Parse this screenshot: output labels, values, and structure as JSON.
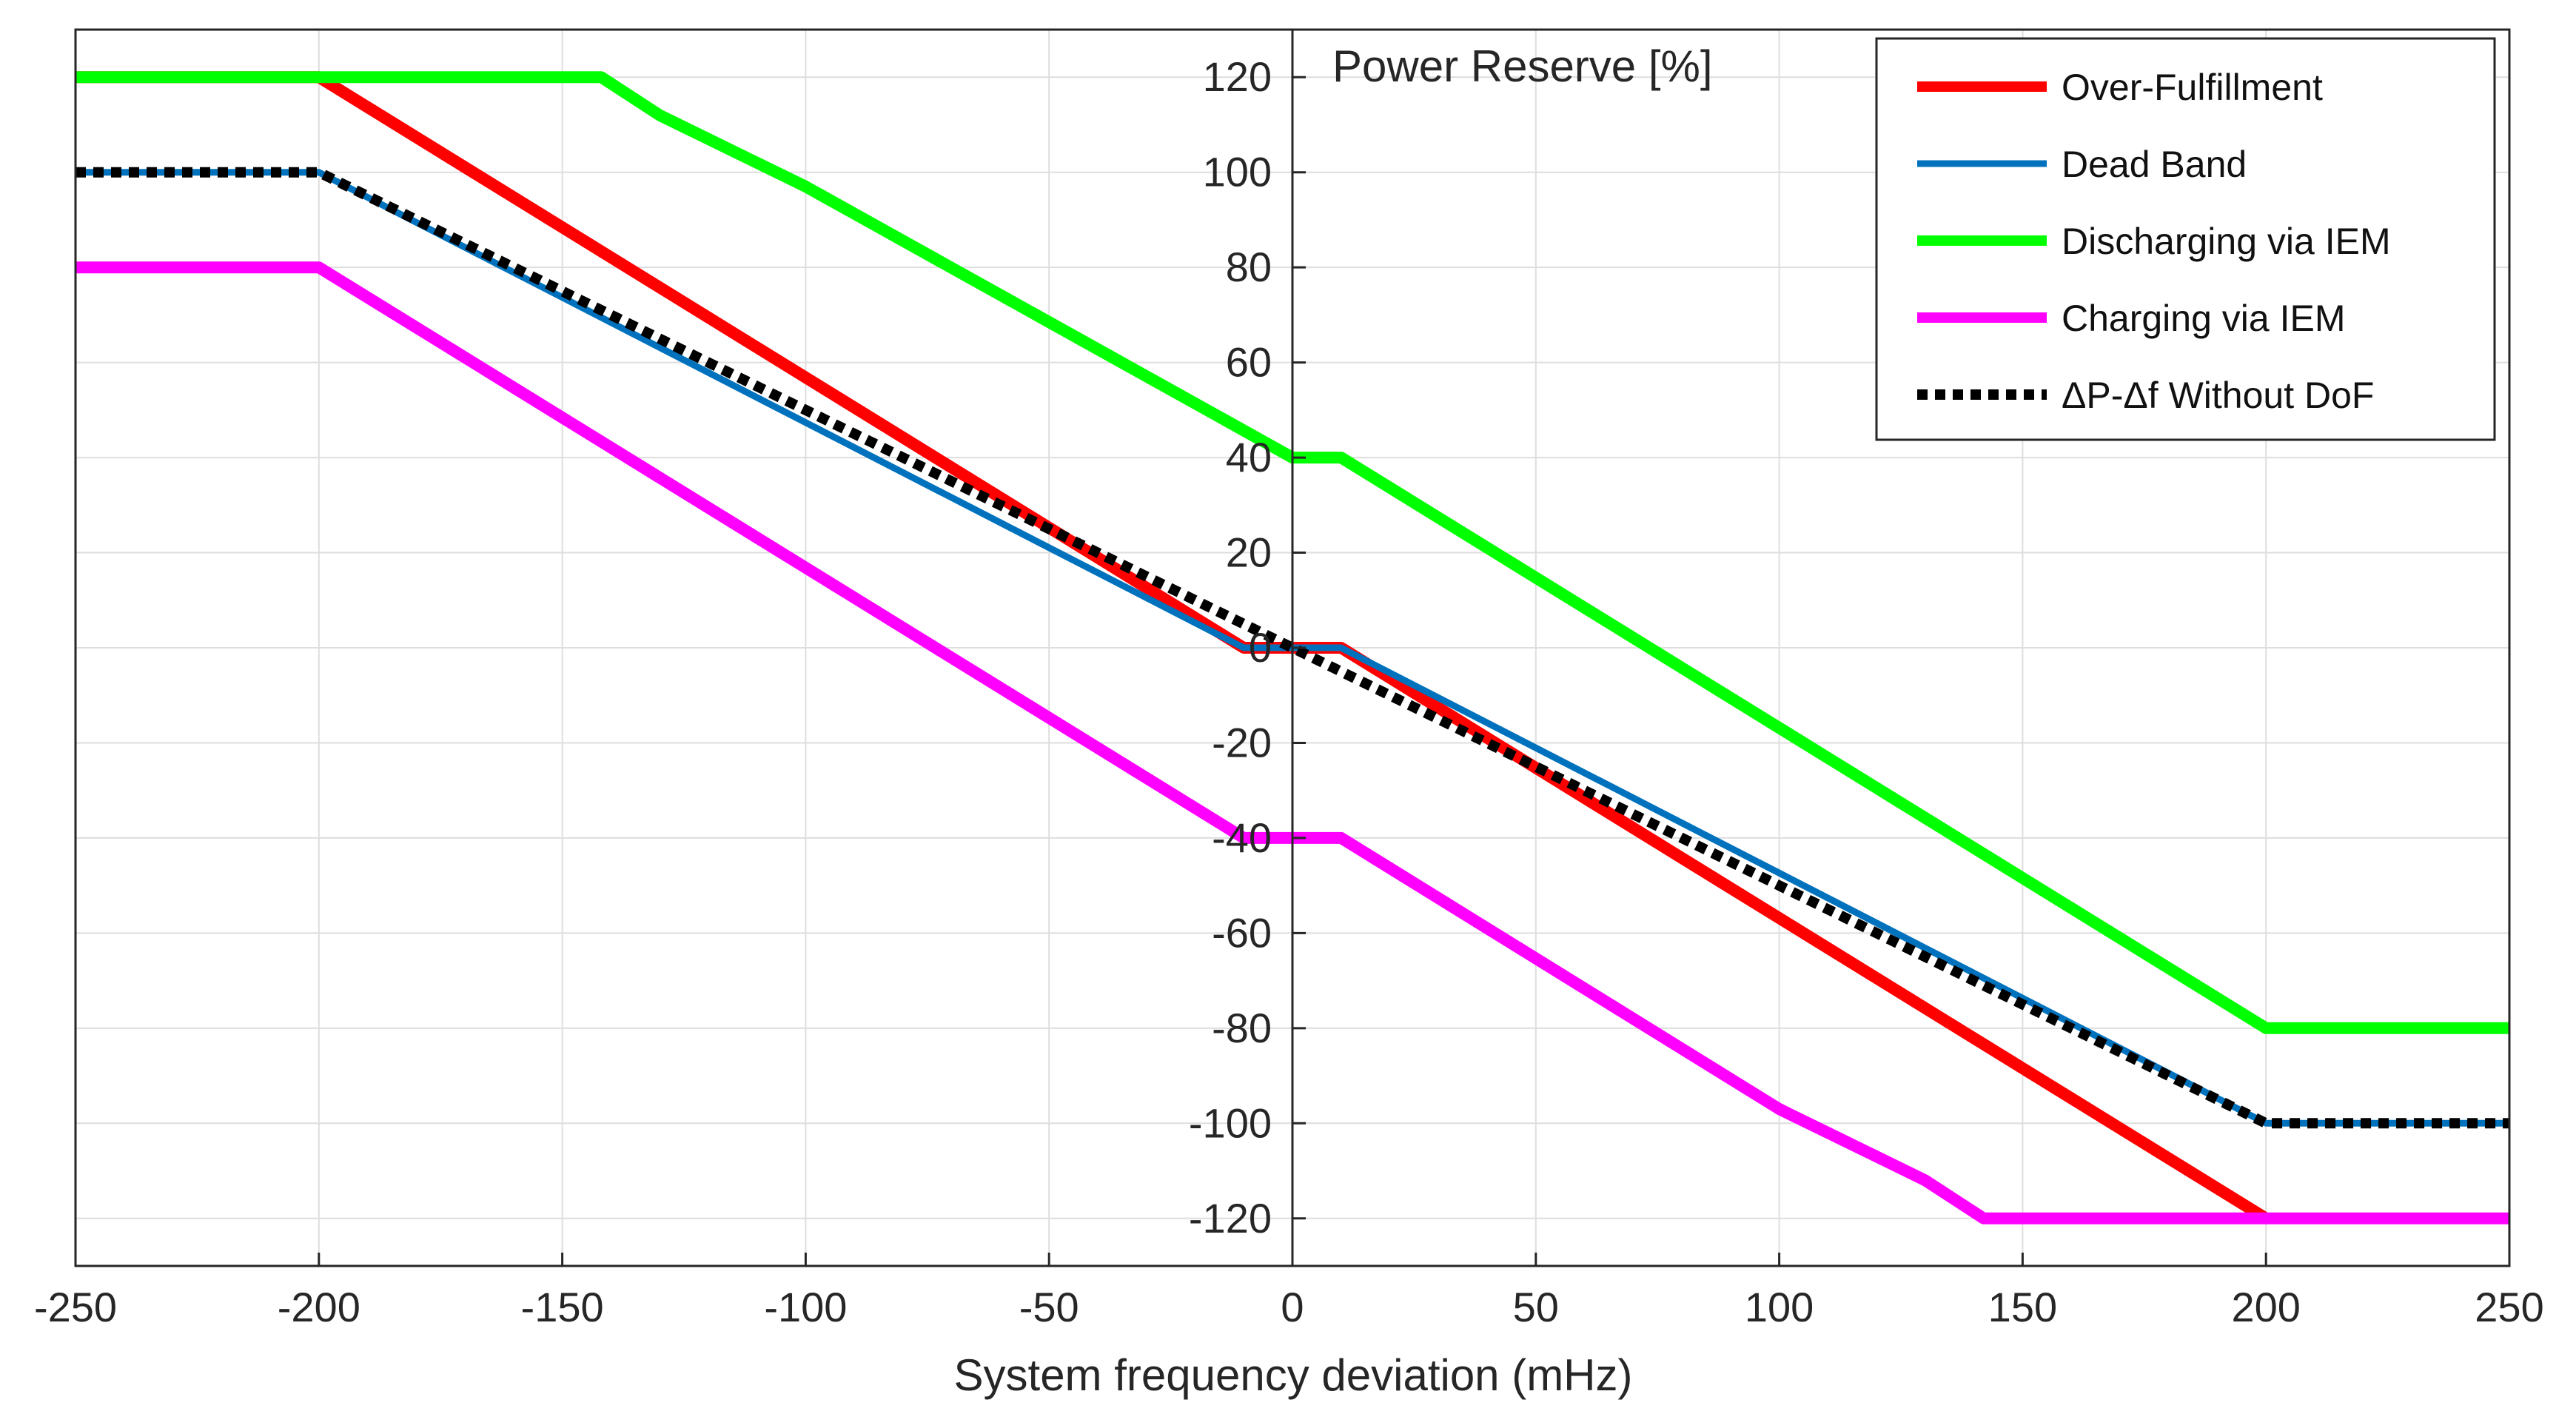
{
  "chart_data": {
    "type": "line",
    "title": "",
    "ylabel": "Power Reserve [%]",
    "xlabel": "System frequency deviation (mHz)",
    "xlim": [
      -250,
      250
    ],
    "ylim": [
      -130,
      130
    ],
    "xticks": [
      -250,
      -200,
      -150,
      -100,
      -50,
      0,
      50,
      100,
      150,
      200,
      250
    ],
    "yticks": [
      120,
      100,
      80,
      60,
      40,
      20,
      0,
      -20,
      -40,
      -60,
      -80,
      -100,
      -120
    ],
    "grid": true,
    "legend_position": "top-right",
    "series": [
      {
        "name": "Over-Fulfillment",
        "color": "#ff0000",
        "style": "solid",
        "x": [
          -250,
          -200,
          -10,
          10,
          200
        ],
        "y": [
          120,
          120,
          0,
          0,
          -120
        ]
      },
      {
        "name": "Dead Band",
        "color": "#0072bd",
        "style": "solid",
        "x": [
          -250,
          -200,
          -10,
          10,
          200,
          250
        ],
        "y": [
          100,
          100,
          0,
          0,
          -100,
          -100
        ]
      },
      {
        "name": "Discharging via IEM",
        "color": "#00ff00",
        "style": "solid",
        "x": [
          -250,
          -142,
          -130,
          -100,
          0,
          10,
          200,
          250
        ],
        "y": [
          120,
          120,
          112,
          97,
          40,
          40,
          -80,
          -80
        ]
      },
      {
        "name": "Charging via IEM",
        "color": "#ff00ff",
        "style": "solid",
        "x": [
          -250,
          -200,
          -10,
          10,
          100,
          130,
          142,
          250
        ],
        "y": [
          80,
          80,
          -40,
          -40,
          -97,
          -112,
          -120,
          -120
        ]
      },
      {
        "name": "ΔP-Δf Without DoF",
        "color": "#000000",
        "style": "dotted",
        "x": [
          -250,
          -200,
          200,
          250
        ],
        "y": [
          100,
          100,
          -100,
          -100
        ]
      }
    ]
  }
}
